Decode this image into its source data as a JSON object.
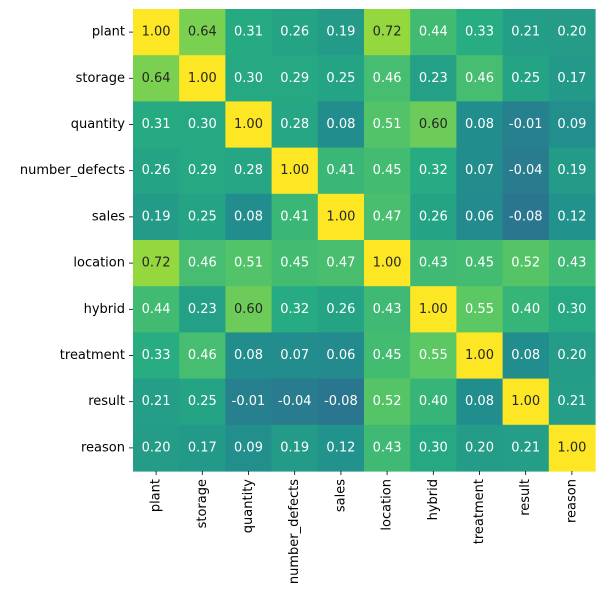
{
  "chart_data": {
    "type": "heatmap",
    "title": "",
    "xlabel": "",
    "ylabel": "",
    "colormap": "viridis",
    "vmin": -0.08,
    "vmax": 1.0,
    "value_format": "2 decimals",
    "colorbar": false,
    "rows": [
      "plant",
      "storage",
      "quantity",
      "number_defects",
      "sales",
      "location",
      "hybrid",
      "treatment",
      "result",
      "reason"
    ],
    "columns": [
      "plant",
      "storage",
      "quantity",
      "number_defects",
      "sales",
      "location",
      "hybrid",
      "treatment",
      "result",
      "reason"
    ],
    "values": [
      [
        1.0,
        0.64,
        0.31,
        0.26,
        0.19,
        0.72,
        0.44,
        0.33,
        0.21,
        0.2
      ],
      [
        0.64,
        1.0,
        0.3,
        0.29,
        0.25,
        0.46,
        0.23,
        0.46,
        0.25,
        0.17
      ],
      [
        0.31,
        0.3,
        1.0,
        0.28,
        0.08,
        0.51,
        0.6,
        0.08,
        -0.01,
        0.09
      ],
      [
        0.26,
        0.29,
        0.28,
        1.0,
        0.41,
        0.45,
        0.32,
        0.07,
        -0.04,
        0.19
      ],
      [
        0.19,
        0.25,
        0.08,
        0.41,
        1.0,
        0.47,
        0.26,
        0.06,
        -0.08,
        0.12
      ],
      [
        0.72,
        0.46,
        0.51,
        0.45,
        0.47,
        1.0,
        0.43,
        0.45,
        0.52,
        0.43
      ],
      [
        0.44,
        0.23,
        0.6,
        0.32,
        0.26,
        0.43,
        1.0,
        0.55,
        0.4,
        0.3
      ],
      [
        0.33,
        0.46,
        0.08,
        0.07,
        0.06,
        0.45,
        0.55,
        1.0,
        0.08,
        0.2
      ],
      [
        0.21,
        0.25,
        -0.01,
        -0.04,
        -0.08,
        0.52,
        0.4,
        0.08,
        1.0,
        0.21
      ],
      [
        0.2,
        0.17,
        0.09,
        0.19,
        0.12,
        0.43,
        0.3,
        0.2,
        0.21,
        1.0
      ]
    ]
  }
}
